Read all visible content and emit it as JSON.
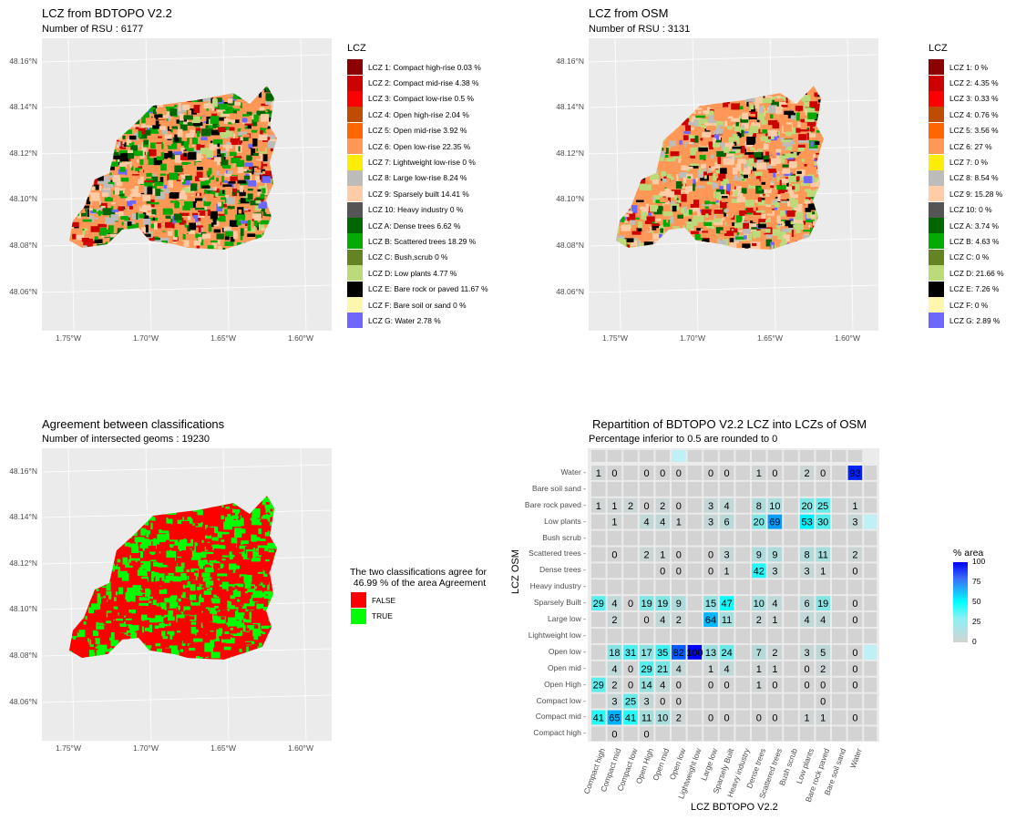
{
  "panels": {
    "bdtopo": {
      "title": "LCZ from   BDTOPO V2.2",
      "subtitle": "Number of RSU : 6177"
    },
    "osm": {
      "title": "LCZ from  OSM",
      "subtitle": "Number of RSU : 3131"
    },
    "agreement": {
      "title": "Agreement between classifications",
      "subtitle": "Number of intersected geoms : 19230"
    },
    "repartition": {
      "title": "Repartition of  BDTOPO V2.2  LCZ into LCZs of  OSM",
      "subtitle": "Percentage inferior to 0.5 are rounded to 0"
    }
  },
  "map_axes": {
    "y_ticks": [
      "48.16°N",
      "48.14°N",
      "48.12°N",
      "48.10°N",
      "48.08°N",
      "48.06°N"
    ],
    "x_ticks": [
      "1.75°W",
      "1.70°W",
      "1.65°W",
      "1.60°W"
    ]
  },
  "lcz_legend_title": "LCZ",
  "lcz_colors": [
    "#8b0101",
    "#cc0200",
    "#fc0001",
    "#be4c03",
    "#ff6602",
    "#ff9856",
    "#fbed08",
    "#bcbcba",
    "#ffcca7",
    "#555555",
    "#006700",
    "#05aa05",
    "#648423",
    "#bbdb7a",
    "#010101",
    "#fdf6ae",
    "#6d67fd"
  ],
  "lcz_legend_bdtopo": [
    "LCZ 1: Compact high-rise 0.03  %",
    "LCZ 2: Compact mid-rise 4.38  %",
    "LCZ 3: Compact low-rise 0.5  %",
    "LCZ 4: Open high-rise 2.04  %",
    "LCZ 5: Open mid-rise 3.92  %",
    "LCZ 6: Open low-rise 22.35  %",
    "LCZ 7: Lightweight low-rise 0  %",
    "LCZ 8: Large low-rise 8.24  %",
    "LCZ 9: Sparsely built 14.41  %",
    "LCZ 10: Heavy industry 0  %",
    "LCZ A: Dense trees 6.62  %",
    "LCZ B: Scattered trees 18.29  %",
    "LCZ C: Bush,scrub 0  %",
    "LCZ D: Low plants 4.77  %",
    "LCZ E: Bare rock or paved 11.67  %",
    "LCZ F: Bare soil or sand 0  %",
    "LCZ G: Water 2.78  %"
  ],
  "lcz_legend_osm": [
    "LCZ 1:  0  %",
    "LCZ 2:  4.35  %",
    "LCZ 3:  0.33  %",
    "LCZ 4:  0.76  %",
    "LCZ 5:  3.56  %",
    "LCZ 6:  27  %",
    "LCZ 7:  0  %",
    "LCZ 8:  8.54  %",
    "LCZ 9:  15.28  %",
    "LCZ 10:  0  %",
    "LCZ A:  3.74  %",
    "LCZ B:  4.63  %",
    "LCZ C:  0  %",
    "LCZ D:  21.66  %",
    "LCZ E:  7.26  %",
    "LCZ F:  0  %",
    "LCZ G:  2.89  %"
  ],
  "agreement_legend": {
    "title": "The two classifications agree for\n 46.99 % of the area Agreement",
    "items": [
      {
        "label": "FALSE",
        "color": "#ff0000"
      },
      {
        "label": "TRUE",
        "color": "#00ff00"
      }
    ]
  },
  "chart_data": [
    {
      "type": "heatmap",
      "title": "Repartition of  BDTOPO V2.2  LCZ into LCZs of  OSM",
      "subtitle": "Percentage inferior to 0.5 are rounded to 0",
      "xlabel": "LCZ  BDTOPO V2.2",
      "ylabel": "LCZ  OSM",
      "x_categories": [
        "Compact high",
        "Compact mid",
        "Compact low",
        "Open High",
        "Open mid",
        "Open low",
        "Lightweight low",
        "Large low",
        "Sparsely Built",
        "Heavy industry",
        "Dense trees",
        "Scattered trees",
        "Bush scrub",
        "Low plants",
        "Bare rock paved",
        "Bare soil sand",
        "Water"
      ],
      "y_categories_top_to_bottom": [
        "Water",
        "Bare soil sand",
        "Bare rock paved",
        "Low plants",
        "Bush scrub",
        "Scattered trees",
        "Dense trees",
        "Heavy industry",
        "Sparsely Built",
        "Large low",
        "Lightweight low",
        "Open low",
        "Open mid",
        "Open High",
        "Compact low",
        "Compact mid",
        "Compact high"
      ],
      "values": [
        [
          1,
          0,
          null,
          0,
          0,
          0,
          null,
          0,
          0,
          null,
          1,
          0,
          null,
          2,
          0,
          null,
          93
        ],
        [
          null,
          null,
          null,
          null,
          null,
          null,
          null,
          null,
          null,
          null,
          null,
          null,
          null,
          null,
          null,
          null,
          null
        ],
        [
          1,
          1,
          2,
          0,
          2,
          0,
          null,
          3,
          4,
          null,
          8,
          10,
          null,
          20,
          25,
          null,
          1
        ],
        [
          null,
          1,
          null,
          4,
          4,
          1,
          null,
          3,
          6,
          null,
          20,
          69,
          null,
          53,
          30,
          null,
          3
        ],
        [
          null,
          null,
          null,
          null,
          null,
          null,
          null,
          null,
          null,
          null,
          null,
          null,
          null,
          null,
          null,
          null,
          null
        ],
        [
          null,
          0,
          null,
          2,
          1,
          0,
          null,
          0,
          3,
          null,
          9,
          9,
          null,
          8,
          11,
          null,
          2
        ],
        [
          null,
          null,
          null,
          null,
          0,
          0,
          null,
          0,
          1,
          null,
          42,
          3,
          null,
          3,
          1,
          null,
          0
        ],
        [
          null,
          null,
          null,
          null,
          null,
          null,
          null,
          null,
          null,
          null,
          null,
          null,
          null,
          null,
          null,
          null,
          null
        ],
        [
          29,
          4,
          0,
          19,
          19,
          9,
          null,
          15,
          47,
          null,
          10,
          4,
          null,
          6,
          19,
          null,
          0
        ],
        [
          null,
          2,
          null,
          0,
          4,
          2,
          null,
          64,
          11,
          null,
          2,
          1,
          null,
          4,
          4,
          null,
          0
        ],
        [
          null,
          null,
          null,
          null,
          null,
          null,
          null,
          null,
          null,
          null,
          null,
          null,
          null,
          null,
          null,
          null,
          null
        ],
        [
          null,
          18,
          31,
          17,
          35,
          82,
          100,
          13,
          24,
          null,
          7,
          2,
          null,
          3,
          5,
          null,
          0
        ],
        [
          null,
          4,
          0,
          29,
          21,
          4,
          null,
          1,
          4,
          null,
          1,
          1,
          null,
          0,
          2,
          null,
          0
        ],
        [
          29,
          2,
          0,
          14,
          4,
          0,
          null,
          0,
          0,
          null,
          1,
          0,
          null,
          0,
          0,
          null,
          0
        ],
        [
          null,
          3,
          25,
          3,
          0,
          0,
          null,
          null,
          null,
          null,
          null,
          null,
          null,
          null,
          0,
          null,
          null
        ],
        [
          41,
          65,
          41,
          11,
          10,
          2,
          null,
          0,
          0,
          null,
          0,
          0,
          null,
          1,
          1,
          null,
          0
        ],
        [
          null,
          0,
          null,
          0,
          null,
          null,
          null,
          null,
          null,
          null,
          null,
          null,
          null,
          null,
          null,
          null,
          null
        ]
      ],
      "legend": {
        "title": "% area",
        "ticks": [
          0,
          25,
          50,
          75,
          100
        ],
        "range": [
          0,
          100
        ],
        "colors": [
          "#d3d3d3",
          "#00ffff",
          "#0000ff"
        ]
      }
    }
  ]
}
